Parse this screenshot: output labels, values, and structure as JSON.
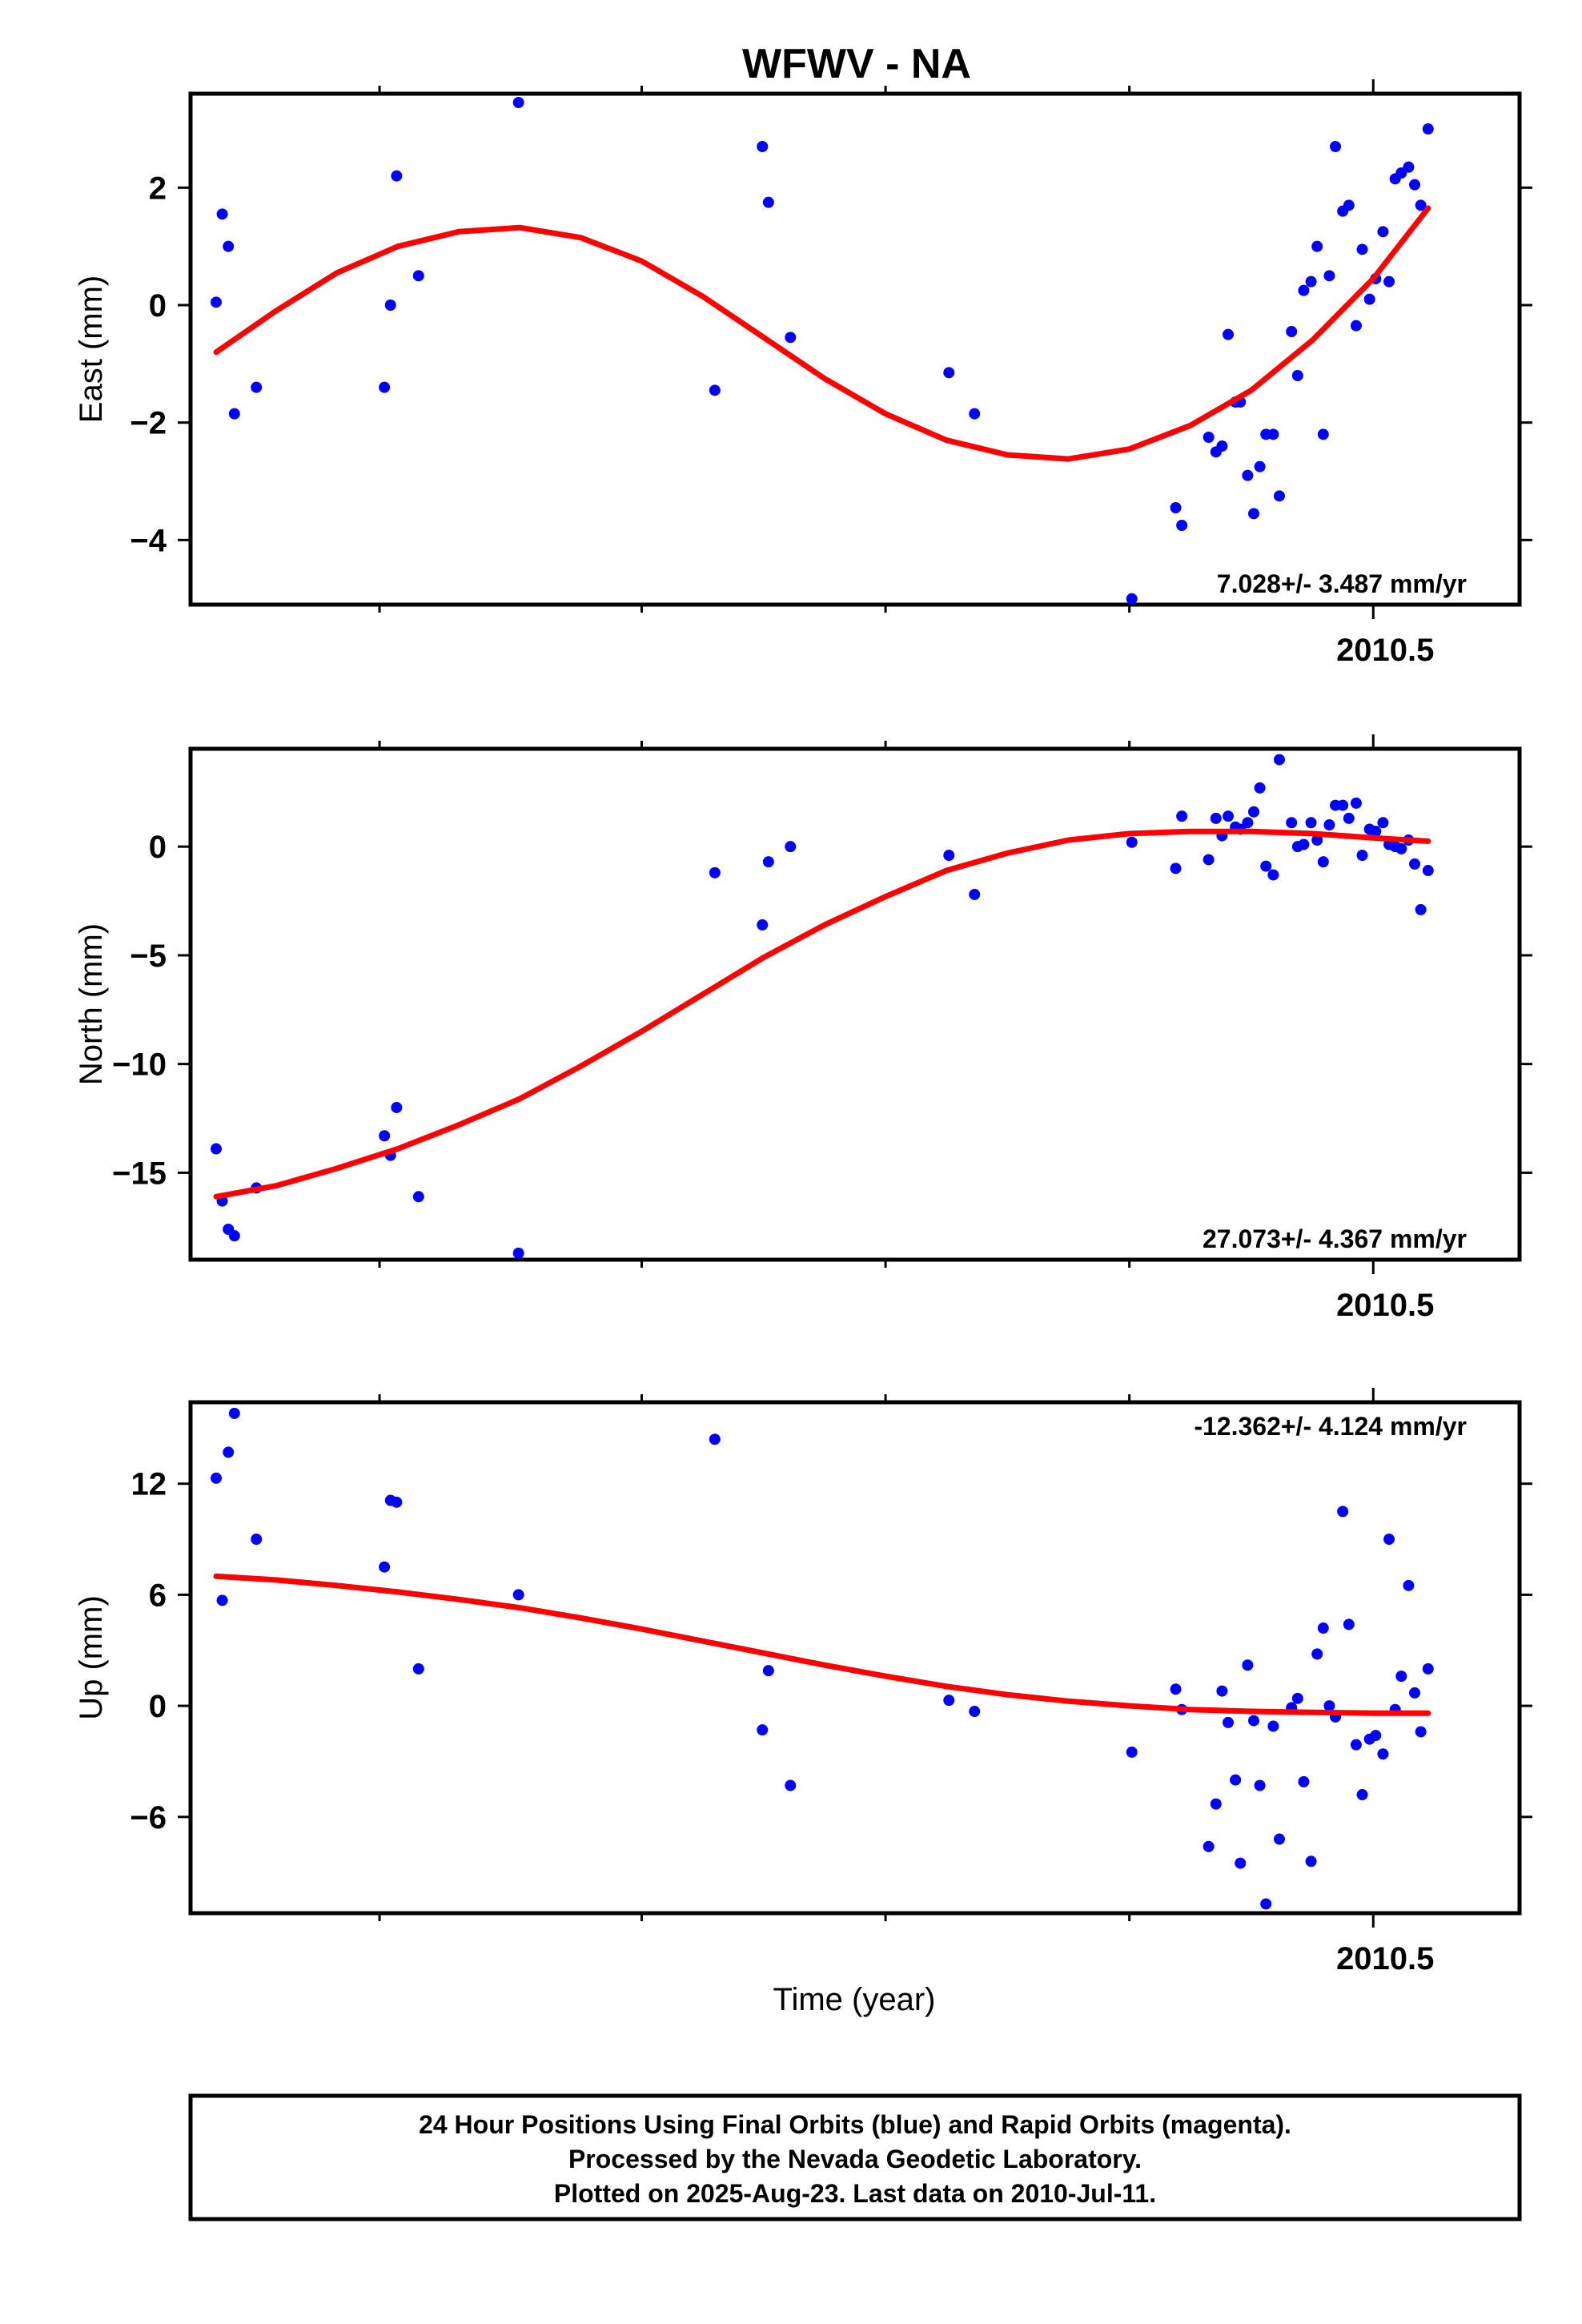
{
  "title": "WFWV - NA",
  "xlabel": "Time (year)",
  "footer": {
    "line1": "24 Hour Positions Using Final Orbits (blue) and Rapid Orbits (magenta).",
    "line2": "Processed by the Nevada Geodetic Laboratory.",
    "line3": "Plotted on 2025-Aug-23. Last data on 2010-Jul-11."
  },
  "colors": {
    "points": "#0000ff",
    "fit": "#ff0000",
    "frame": "#000000"
  },
  "chart_data": [
    {
      "type": "scatter",
      "ylabel": "East (mm)",
      "rate_label": "7.028+/- 3.487 mm/yr",
      "xlim": [
        2009.53,
        2010.62
      ],
      "ylim": [
        -5.1,
        3.6
      ],
      "yticks": [
        2,
        0,
        -2,
        -4
      ],
      "ytick_labels": [
        "2",
        "0",
        "−2",
        "−4"
      ],
      "xticks_minor": [
        2009.685,
        2009.9,
        2010.1,
        2010.3
      ],
      "xticks_major": [
        2010.5
      ],
      "xtick_labels": [
        "2010.5"
      ],
      "points": [
        [
          2009.551,
          0.05
        ],
        [
          2009.556,
          1.55
        ],
        [
          2009.561,
          1.0
        ],
        [
          2009.566,
          -1.85
        ],
        [
          2009.584,
          -1.4
        ],
        [
          2009.689,
          -1.4
        ],
        [
          2009.694,
          0.0
        ],
        [
          2009.699,
          2.2
        ],
        [
          2009.717,
          0.5
        ],
        [
          2009.799,
          3.45
        ],
        [
          2009.96,
          -1.45
        ],
        [
          2009.999,
          2.7
        ],
        [
          2010.004,
          1.75
        ],
        [
          2010.022,
          -0.55
        ],
        [
          2010.152,
          -1.15
        ],
        [
          2010.173,
          -1.85
        ],
        [
          2010.302,
          -5.0
        ],
        [
          2010.338,
          -3.45
        ],
        [
          2010.343,
          -3.75
        ],
        [
          2010.365,
          -2.25
        ],
        [
          2010.371,
          -2.5
        ],
        [
          2010.376,
          -2.4
        ],
        [
          2010.381,
          -0.5
        ],
        [
          2010.387,
          -1.65
        ],
        [
          2010.391,
          -1.65
        ],
        [
          2010.397,
          -2.9
        ],
        [
          2010.402,
          -3.55
        ],
        [
          2010.407,
          -2.75
        ],
        [
          2010.412,
          -2.2
        ],
        [
          2010.418,
          -2.2
        ],
        [
          2010.423,
          -3.25
        ],
        [
          2010.433,
          -0.45
        ],
        [
          2010.438,
          -1.2
        ],
        [
          2010.443,
          0.25
        ],
        [
          2010.449,
          0.4
        ],
        [
          2010.454,
          1.0
        ],
        [
          2010.459,
          -2.2
        ],
        [
          2010.464,
          0.5
        ],
        [
          2010.469,
          2.7
        ],
        [
          2010.475,
          1.6
        ],
        [
          2010.48,
          1.7
        ],
        [
          2010.486,
          -0.35
        ],
        [
          2010.491,
          0.95
        ],
        [
          2010.497,
          0.1
        ],
        [
          2010.502,
          0.45
        ],
        [
          2010.508,
          1.25
        ],
        [
          2010.513,
          0.4
        ],
        [
          2010.518,
          2.15
        ],
        [
          2010.523,
          2.25
        ],
        [
          2010.529,
          2.35
        ],
        [
          2010.534,
          2.05
        ],
        [
          2010.539,
          1.7
        ],
        [
          2010.545,
          3.0
        ]
      ],
      "fit": [
        [
          2009.551,
          -0.8
        ],
        [
          2009.6,
          -0.1
        ],
        [
          2009.65,
          0.55
        ],
        [
          2009.7,
          1.0
        ],
        [
          2009.75,
          1.25
        ],
        [
          2009.8,
          1.32
        ],
        [
          2009.85,
          1.15
        ],
        [
          2009.9,
          0.75
        ],
        [
          2009.95,
          0.15
        ],
        [
          2010.0,
          -0.55
        ],
        [
          2010.05,
          -1.25
        ],
        [
          2010.1,
          -1.85
        ],
        [
          2010.15,
          -2.3
        ],
        [
          2010.2,
          -2.55
        ],
        [
          2010.25,
          -2.62
        ],
        [
          2010.3,
          -2.45
        ],
        [
          2010.35,
          -2.05
        ],
        [
          2010.4,
          -1.45
        ],
        [
          2010.45,
          -0.6
        ],
        [
          2010.5,
          0.45
        ],
        [
          2010.545,
          1.65
        ]
      ]
    },
    {
      "type": "scatter",
      "ylabel": "North (mm)",
      "rate_label": "27.073+/- 4.367 mm/yr",
      "xlim": [
        2009.53,
        2010.62
      ],
      "ylim": [
        -19.0,
        4.5
      ],
      "yticks": [
        0,
        -5,
        -10,
        -15
      ],
      "ytick_labels": [
        "0",
        "−5",
        "−10",
        "−15"
      ],
      "xticks_minor": [
        2009.685,
        2009.9,
        2010.1,
        2010.3
      ],
      "xticks_major": [
        2010.5
      ],
      "xtick_labels": [
        "2010.5"
      ],
      "points": [
        [
          2009.551,
          -13.9
        ],
        [
          2009.556,
          -16.3
        ],
        [
          2009.561,
          -17.6
        ],
        [
          2009.566,
          -17.9
        ],
        [
          2009.584,
          -15.7
        ],
        [
          2009.689,
          -13.3
        ],
        [
          2009.694,
          -14.2
        ],
        [
          2009.699,
          -12.0
        ],
        [
          2009.717,
          -16.1
        ],
        [
          2009.799,
          -18.7
        ],
        [
          2009.96,
          -1.2
        ],
        [
          2009.999,
          -3.6
        ],
        [
          2010.004,
          -0.7
        ],
        [
          2010.022,
          0.0
        ],
        [
          2010.152,
          -0.4
        ],
        [
          2010.173,
          -2.2
        ],
        [
          2010.302,
          0.2
        ],
        [
          2010.338,
          -1.0
        ],
        [
          2010.343,
          1.4
        ],
        [
          2010.365,
          -0.6
        ],
        [
          2010.371,
          1.3
        ],
        [
          2010.376,
          0.5
        ],
        [
          2010.381,
          1.4
        ],
        [
          2010.387,
          0.9
        ],
        [
          2010.391,
          0.8
        ],
        [
          2010.397,
          1.1
        ],
        [
          2010.402,
          1.6
        ],
        [
          2010.407,
          2.7
        ],
        [
          2010.412,
          -0.9
        ],
        [
          2010.418,
          -1.3
        ],
        [
          2010.423,
          4.0
        ],
        [
          2010.433,
          1.1
        ],
        [
          2010.438,
          0.0
        ],
        [
          2010.443,
          0.1
        ],
        [
          2010.449,
          1.1
        ],
        [
          2010.454,
          0.3
        ],
        [
          2010.459,
          -0.7
        ],
        [
          2010.464,
          1.0
        ],
        [
          2010.469,
          1.9
        ],
        [
          2010.475,
          1.9
        ],
        [
          2010.48,
          1.3
        ],
        [
          2010.486,
          2.0
        ],
        [
          2010.491,
          -0.4
        ],
        [
          2010.497,
          0.8
        ],
        [
          2010.502,
          0.7
        ],
        [
          2010.508,
          1.1
        ],
        [
          2010.513,
          0.1
        ],
        [
          2010.518,
          0.0
        ],
        [
          2010.523,
          -0.1
        ],
        [
          2010.529,
          0.3
        ],
        [
          2010.534,
          -0.8
        ],
        [
          2010.539,
          -2.9
        ],
        [
          2010.545,
          -1.1
        ]
      ],
      "fit": [
        [
          2009.551,
          -16.1
        ],
        [
          2009.6,
          -15.6
        ],
        [
          2009.65,
          -14.8
        ],
        [
          2009.7,
          -13.9
        ],
        [
          2009.75,
          -12.8
        ],
        [
          2009.8,
          -11.6
        ],
        [
          2009.85,
          -10.1
        ],
        [
          2009.9,
          -8.5
        ],
        [
          2009.95,
          -6.8
        ],
        [
          2010.0,
          -5.1
        ],
        [
          2010.05,
          -3.6
        ],
        [
          2010.1,
          -2.3
        ],
        [
          2010.15,
          -1.1
        ],
        [
          2010.2,
          -0.3
        ],
        [
          2010.25,
          0.3
        ],
        [
          2010.3,
          0.6
        ],
        [
          2010.35,
          0.7
        ],
        [
          2010.4,
          0.7
        ],
        [
          2010.45,
          0.6
        ],
        [
          2010.5,
          0.4
        ],
        [
          2010.545,
          0.25
        ]
      ]
    },
    {
      "type": "scatter",
      "ylabel": "Up (mm)",
      "rate_label": "-12.362+/- 4.124 mm/yr",
      "xlim": [
        2009.53,
        2010.62
      ],
      "ylim": [
        -11.2,
        16.4
      ],
      "yticks": [
        12,
        6,
        0,
        -6
      ],
      "ytick_labels": [
        "12",
        "6",
        "0",
        "−6"
      ],
      "xticks_minor": [
        2009.685,
        2009.9,
        2010.1,
        2010.3
      ],
      "xticks_major": [
        2010.5
      ],
      "xtick_labels": [
        "2010.5"
      ],
      "points": [
        [
          2009.551,
          12.3
        ],
        [
          2009.556,
          5.7
        ],
        [
          2009.561,
          13.7
        ],
        [
          2009.566,
          15.8
        ],
        [
          2009.584,
          9.0
        ],
        [
          2009.689,
          7.5
        ],
        [
          2009.694,
          11.1
        ],
        [
          2009.699,
          11.0
        ],
        [
          2009.717,
          2.0
        ],
        [
          2009.799,
          6.0
        ],
        [
          2009.96,
          14.4
        ],
        [
          2009.999,
          -1.3
        ],
        [
          2010.004,
          1.9
        ],
        [
          2010.022,
          -4.3
        ],
        [
          2010.152,
          0.3
        ],
        [
          2010.173,
          -0.3
        ],
        [
          2010.302,
          -2.5
        ],
        [
          2010.338,
          0.9
        ],
        [
          2010.343,
          -0.2
        ],
        [
          2010.365,
          -7.6
        ],
        [
          2010.371,
          -5.3
        ],
        [
          2010.376,
          0.8
        ],
        [
          2010.381,
          -0.9
        ],
        [
          2010.387,
          -4.0
        ],
        [
          2010.391,
          -8.5
        ],
        [
          2010.397,
          2.2
        ],
        [
          2010.402,
          -0.8
        ],
        [
          2010.407,
          -4.3
        ],
        [
          2010.412,
          -10.7
        ],
        [
          2010.418,
          -1.1
        ],
        [
          2010.423,
          -7.2
        ],
        [
          2010.433,
          -0.1
        ],
        [
          2010.438,
          0.4
        ],
        [
          2010.443,
          -4.1
        ],
        [
          2010.449,
          -8.4
        ],
        [
          2010.454,
          2.8
        ],
        [
          2010.459,
          4.2
        ],
        [
          2010.464,
          0.0
        ],
        [
          2010.469,
          -0.6
        ],
        [
          2010.475,
          10.5
        ],
        [
          2010.48,
          4.4
        ],
        [
          2010.486,
          -2.1
        ],
        [
          2010.491,
          -4.8
        ],
        [
          2010.497,
          -1.8
        ],
        [
          2010.502,
          -1.6
        ],
        [
          2010.508,
          -2.6
        ],
        [
          2010.513,
          9.0
        ],
        [
          2010.518,
          -0.2
        ],
        [
          2010.523,
          1.6
        ],
        [
          2010.529,
          6.5
        ],
        [
          2010.534,
          0.7
        ],
        [
          2010.539,
          -1.4
        ],
        [
          2010.545,
          2.0
        ]
      ],
      "fit": [
        [
          2009.551,
          7.0
        ],
        [
          2009.6,
          6.8
        ],
        [
          2009.65,
          6.5
        ],
        [
          2009.7,
          6.15
        ],
        [
          2009.75,
          5.75
        ],
        [
          2009.8,
          5.3
        ],
        [
          2009.85,
          4.75
        ],
        [
          2009.9,
          4.15
        ],
        [
          2009.95,
          3.5
        ],
        [
          2010.0,
          2.85
        ],
        [
          2010.05,
          2.2
        ],
        [
          2010.1,
          1.6
        ],
        [
          2010.15,
          1.05
        ],
        [
          2010.2,
          0.6
        ],
        [
          2010.25,
          0.25
        ],
        [
          2010.3,
          0.0
        ],
        [
          2010.35,
          -0.2
        ],
        [
          2010.4,
          -0.3
        ],
        [
          2010.45,
          -0.35
        ],
        [
          2010.5,
          -0.4
        ],
        [
          2010.545,
          -0.4
        ]
      ]
    }
  ]
}
